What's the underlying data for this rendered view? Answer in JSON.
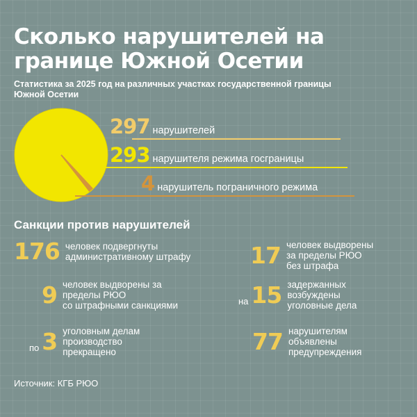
{
  "title": "Сколько нарушителей на границе Южной Осетии",
  "subtitle": "Статистика за 2025 год на различных участках государственной границы Южной Осетии",
  "colors": {
    "background": "#7d9290",
    "pie_main": "#f2e600",
    "pie_small": "#d4943c",
    "accent": "#f0cc55"
  },
  "chart_data": {
    "type": "pie",
    "title": "",
    "total": {
      "value": 297,
      "label": "нарушителей",
      "color": "#f2cc6a"
    },
    "slices": [
      {
        "value": 293,
        "label": "нарушителя режима госграницы",
        "color": "#f2e600"
      },
      {
        "value": 4,
        "label": "нарушитель пограничного режима",
        "color": "#d4943c"
      }
    ]
  },
  "sanctions": {
    "title": "Санкции против нарушителей",
    "items": [
      {
        "prefix": "",
        "value": "176",
        "label": "человек подвергнуты\nадминистративному штрафу"
      },
      {
        "prefix": "",
        "value": "17",
        "label": "человек выдворены\nза пределы РЮО\nбез штрафа"
      },
      {
        "prefix": "",
        "value": "9",
        "label": "человек выдворены за\nпределы РЮО\nсо штрафными санкциями"
      },
      {
        "prefix": "на",
        "value": "15",
        "label": "задержанных\nвозбуждены\nуголовные дела"
      },
      {
        "prefix": "по",
        "value": "3",
        "label": "уголовным делам\nпроизводство\nпрекращено"
      },
      {
        "prefix": "",
        "value": "77",
        "label": "нарушителям\nобъявлены\nпредупреждения"
      }
    ]
  },
  "source": "Источник: КГБ РЮО"
}
